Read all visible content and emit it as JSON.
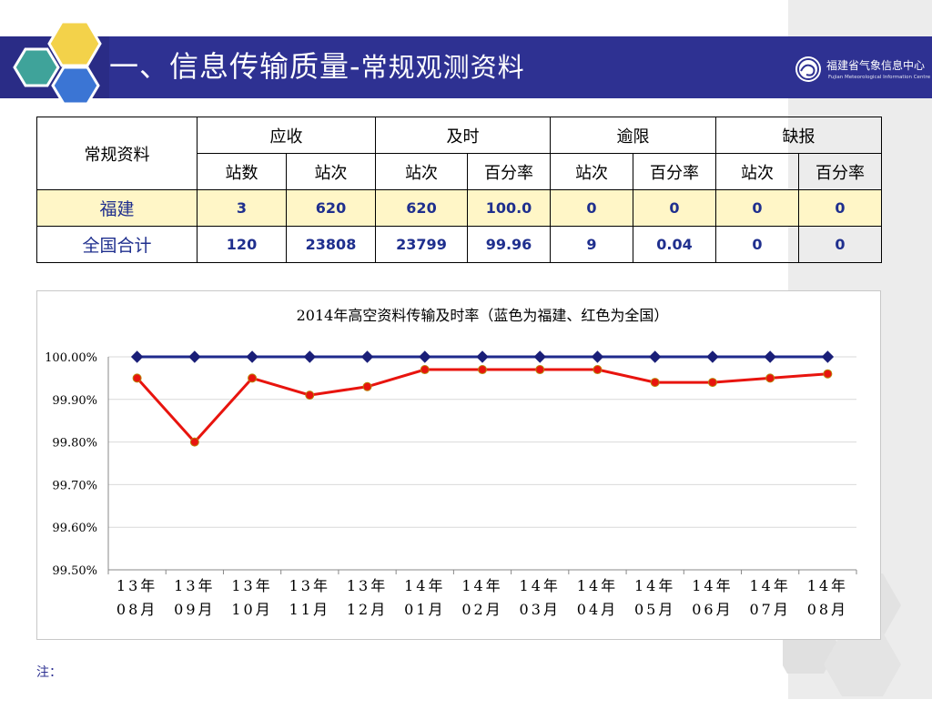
{
  "header": {
    "title_main": "一、信息传输质量",
    "title_sep": "-",
    "title_sub": "常规观测资料",
    "logo_text": "福建省气象信息中心",
    "logo_subtext": "Fujian Meteorological Information Centre"
  },
  "table": {
    "corner_label": "常规资料",
    "groups": [
      "应收",
      "及时",
      "逾限",
      "缺报"
    ],
    "subheaders": [
      "站数",
      "站次",
      "站次",
      "百分率",
      "站次",
      "百分率",
      "站次",
      "百分率"
    ],
    "rows": [
      {
        "region": "福建",
        "values": [
          "3",
          "620",
          "620",
          "100.0",
          "0",
          "0",
          "0",
          "0"
        ]
      },
      {
        "region": "全国合计",
        "values": [
          "120",
          "23808",
          "23799",
          "99.96",
          "9",
          "0.04",
          "0",
          "0"
        ]
      }
    ]
  },
  "chart_data": {
    "type": "line",
    "title": "2014年高空资料传输及时率（蓝色为福建、红色为全国）",
    "categories": [
      "13年08月",
      "13年09月",
      "13年10月",
      "13年11月",
      "13年12月",
      "14年01月",
      "14年02月",
      "14年03月",
      "14年04月",
      "14年05月",
      "14年06月",
      "14年07月",
      "14年08月"
    ],
    "category_lines": [
      [
        "13年",
        "08月"
      ],
      [
        "13年",
        "09月"
      ],
      [
        "13年",
        "10月"
      ],
      [
        "13年",
        "11月"
      ],
      [
        "13年",
        "12月"
      ],
      [
        "14年",
        "01月"
      ],
      [
        "14年",
        "02月"
      ],
      [
        "14年",
        "03月"
      ],
      [
        "14年",
        "04月"
      ],
      [
        "14年",
        "05月"
      ],
      [
        "14年",
        "06月"
      ],
      [
        "14年",
        "07月"
      ],
      [
        "14年",
        "08月"
      ]
    ],
    "ylim": [
      99.5,
      100.0
    ],
    "yticks": [
      "100.00%",
      "99.90%",
      "99.80%",
      "99.70%",
      "99.60%",
      "99.50%"
    ],
    "series": [
      {
        "color": "#1f2a8c",
        "marker": "diamond",
        "values": [
          100.0,
          100.0,
          100.0,
          100.0,
          100.0,
          100.0,
          100.0,
          100.0,
          100.0,
          100.0,
          100.0,
          100.0,
          100.0
        ]
      },
      {
        "color": "#e8140e",
        "marker": "circle",
        "values": [
          99.95,
          99.8,
          99.95,
          99.91,
          99.93,
          99.97,
          99.97,
          99.97,
          99.97,
          99.94,
          99.94,
          99.95,
          99.96
        ]
      }
    ],
    "grid": true
  },
  "note": "注："
}
